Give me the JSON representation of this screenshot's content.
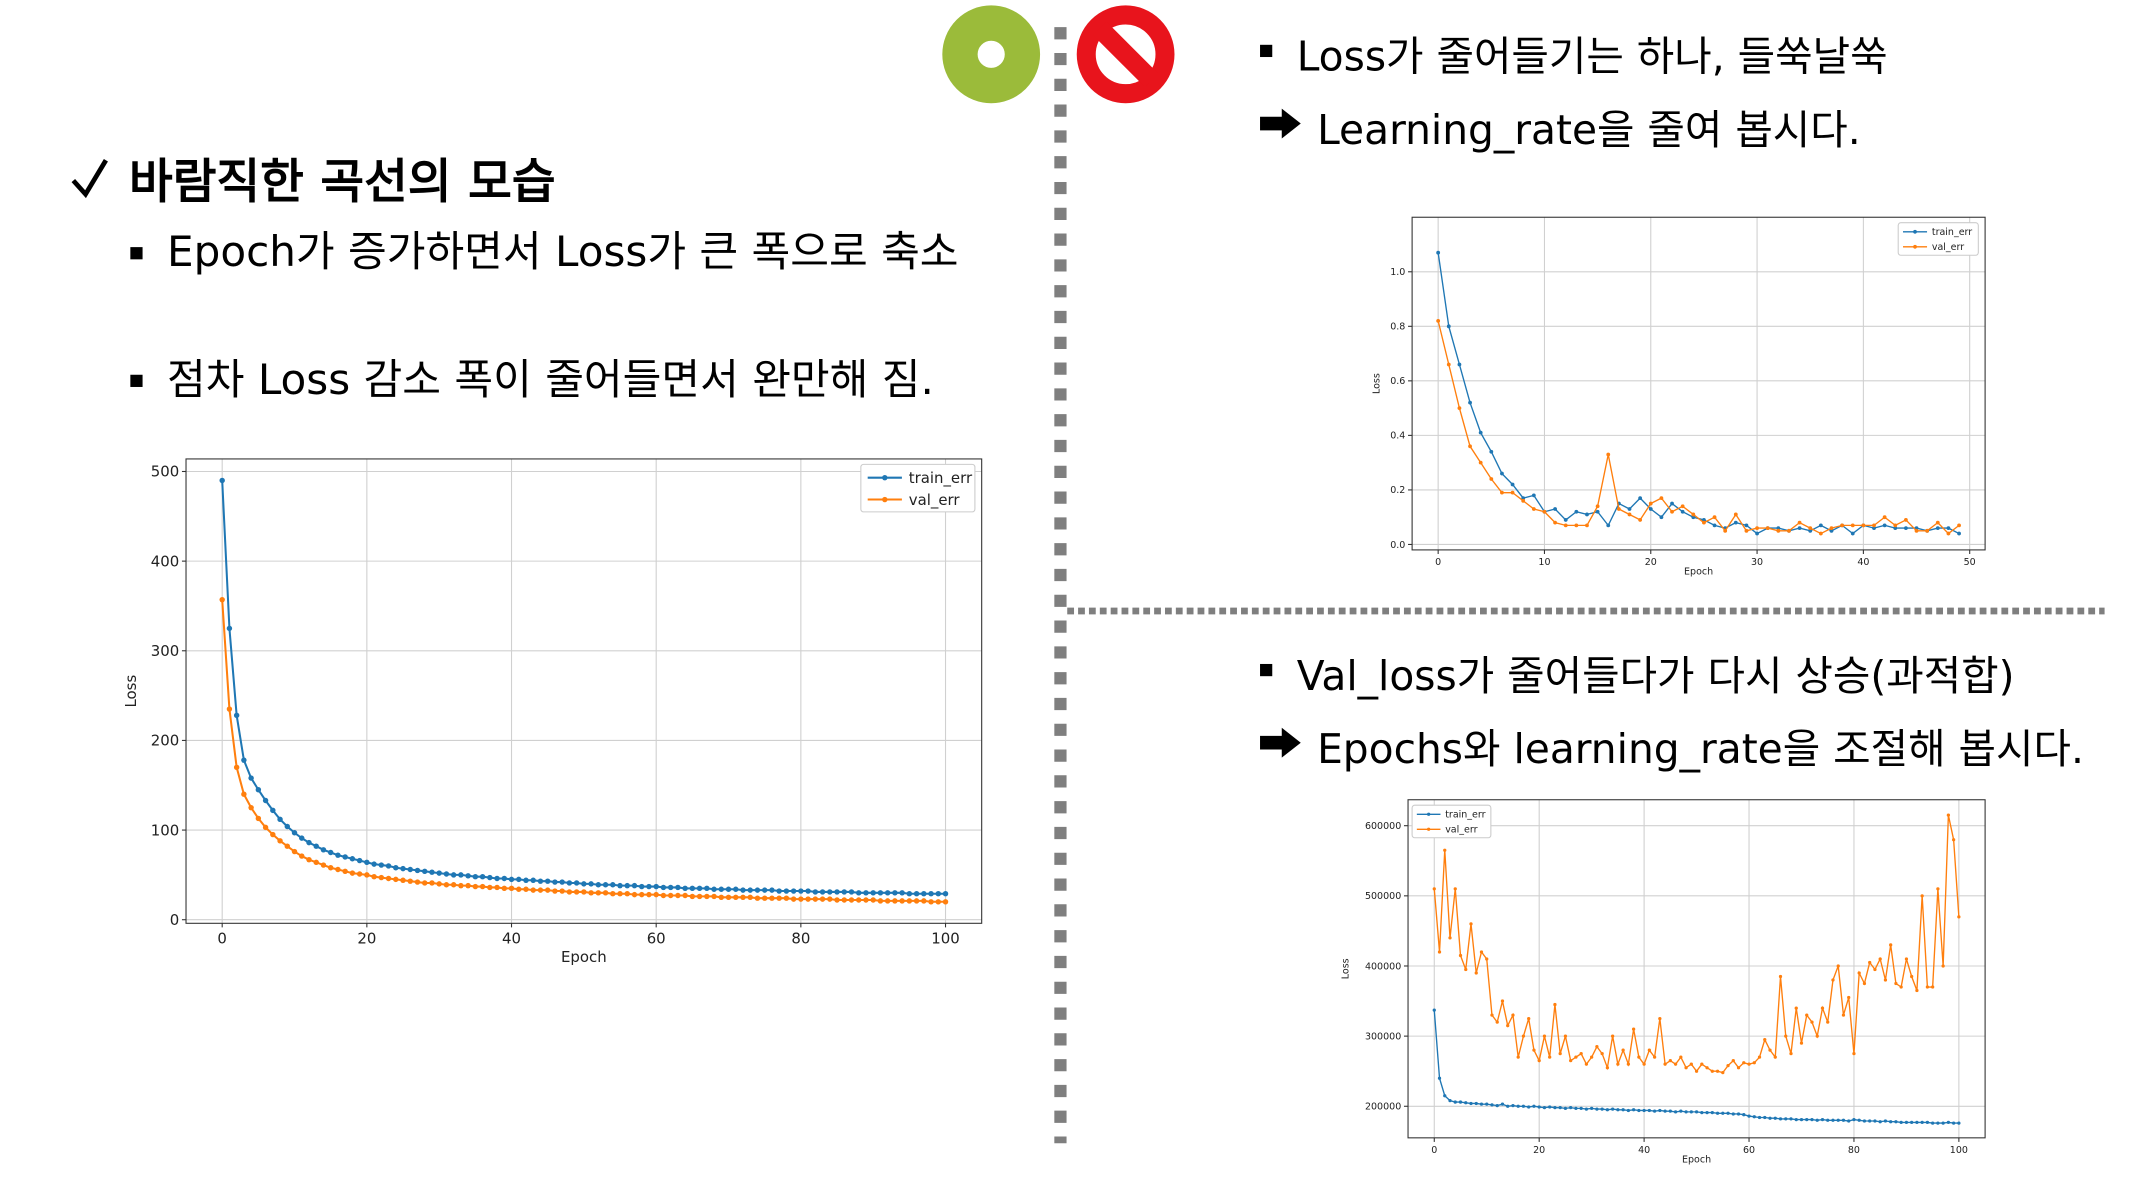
{
  "left": {
    "heading": "바람직한 곡선의 모습",
    "bullets": [
      "Epoch가 증가하면서 Loss가 큰 폭으로 축소",
      "점차 Loss 감소 폭이 줄어들면서 완만해 짐."
    ]
  },
  "top_right": {
    "bullet": "Loss가 줄어들기는 하나, 들쑥날쑥",
    "advice": "Learning_rate을 줄여 봅시다."
  },
  "bottom_right": {
    "bullet": "Val_loss가 줄어들다가 다시 상승(과적합)",
    "advice": "Epochs와 learning_rate을 조절해 봅시다."
  },
  "chart_data": [
    {
      "type": "line",
      "xlabel": "Epoch",
      "ylabel": "Loss",
      "grid": true,
      "legend": "upper right",
      "x": [
        0,
        1,
        2,
        3,
        4,
        5,
        6,
        7,
        8,
        9,
        10,
        11,
        12,
        13,
        14,
        15,
        16,
        17,
        18,
        19,
        20,
        21,
        22,
        23,
        24,
        25,
        26,
        27,
        28,
        29,
        30,
        31,
        32,
        33,
        34,
        35,
        36,
        37,
        38,
        39,
        40,
        41,
        42,
        43,
        44,
        45,
        46,
        47,
        48,
        49,
        50,
        51,
        52,
        53,
        54,
        55,
        56,
        57,
        58,
        59,
        60,
        61,
        62,
        63,
        64,
        65,
        66,
        67,
        68,
        69,
        70,
        71,
        72,
        73,
        74,
        75,
        76,
        77,
        78,
        79,
        80,
        81,
        82,
        83,
        84,
        85,
        86,
        87,
        88,
        89,
        90,
        91,
        92,
        93,
        94,
        95,
        96,
        97,
        98,
        99,
        100
      ],
      "series": [
        {
          "name": "train_err",
          "color": "#1f77b4",
          "values": [
            490,
            325,
            228,
            178,
            158,
            145,
            133,
            122,
            112,
            104,
            97,
            91,
            86,
            82,
            78,
            75,
            72,
            70,
            68,
            66,
            64,
            62,
            61,
            60,
            58,
            57,
            56,
            55,
            54,
            53,
            52,
            51,
            50,
            50,
            49,
            48,
            48,
            47,
            46,
            46,
            45,
            45,
            44,
            44,
            43,
            43,
            42,
            42,
            41,
            41,
            40,
            40,
            39,
            39,
            39,
            38,
            38,
            38,
            37,
            37,
            37,
            36,
            36,
            36,
            35,
            35,
            35,
            35,
            34,
            34,
            34,
            34,
            33,
            33,
            33,
            33,
            33,
            32,
            32,
            32,
            32,
            32,
            31,
            31,
            31,
            31,
            31,
            31,
            30,
            30,
            30,
            30,
            30,
            30,
            30,
            29,
            29,
            29,
            29,
            29,
            29
          ]
        },
        {
          "name": "val_err",
          "color": "#ff7f0e",
          "values": [
            357,
            235,
            170,
            140,
            125,
            113,
            103,
            95,
            88,
            82,
            76,
            71,
            67,
            64,
            61,
            58,
            56,
            54,
            52,
            51,
            50,
            48,
            47,
            46,
            45,
            44,
            43,
            42,
            41,
            41,
            40,
            39,
            39,
            38,
            38,
            37,
            37,
            36,
            36,
            35,
            35,
            34,
            34,
            33,
            33,
            33,
            32,
            32,
            31,
            31,
            31,
            30,
            30,
            30,
            29,
            29,
            29,
            28,
            28,
            28,
            28,
            27,
            27,
            27,
            27,
            26,
            26,
            26,
            26,
            25,
            25,
            25,
            25,
            25,
            24,
            24,
            24,
            24,
            24,
            23,
            23,
            23,
            23,
            23,
            23,
            22,
            22,
            22,
            22,
            22,
            22,
            21,
            21,
            21,
            21,
            21,
            21,
            21,
            20,
            20,
            20
          ]
        }
      ],
      "xlim": [
        -5,
        105
      ],
      "xticks": [
        0,
        20,
        40,
        60,
        80,
        100
      ],
      "ylim": [
        -4,
        514
      ],
      "yticks": [
        0,
        100,
        200,
        300,
        400,
        500
      ]
    },
    {
      "type": "line",
      "xlabel": "Epoch",
      "ylabel": "Loss",
      "grid": true,
      "legend": "upper right",
      "x": [
        0,
        1,
        2,
        3,
        4,
        5,
        6,
        7,
        8,
        9,
        10,
        11,
        12,
        13,
        14,
        15,
        16,
        17,
        18,
        19,
        20,
        21,
        22,
        23,
        24,
        25,
        26,
        27,
        28,
        29,
        30,
        31,
        32,
        33,
        34,
        35,
        36,
        37,
        38,
        39,
        40,
        41,
        42,
        43,
        44,
        45,
        46,
        47,
        48,
        49
      ],
      "series": [
        {
          "name": "train_err",
          "color": "#1f77b4",
          "values": [
            1.07,
            0.8,
            0.66,
            0.52,
            0.41,
            0.34,
            0.26,
            0.22,
            0.17,
            0.18,
            0.12,
            0.13,
            0.09,
            0.12,
            0.11,
            0.12,
            0.07,
            0.15,
            0.13,
            0.17,
            0.13,
            0.1,
            0.15,
            0.12,
            0.1,
            0.09,
            0.07,
            0.06,
            0.08,
            0.07,
            0.04,
            0.06,
            0.06,
            0.05,
            0.06,
            0.05,
            0.07,
            0.05,
            0.07,
            0.04,
            0.07,
            0.06,
            0.07,
            0.06,
            0.06,
            0.06,
            0.05,
            0.06,
            0.06,
            0.04
          ]
        },
        {
          "name": "val_err",
          "color": "#ff7f0e",
          "values": [
            0.82,
            0.66,
            0.5,
            0.36,
            0.3,
            0.24,
            0.19,
            0.19,
            0.16,
            0.13,
            0.12,
            0.08,
            0.07,
            0.07,
            0.07,
            0.14,
            0.33,
            0.13,
            0.11,
            0.09,
            0.15,
            0.17,
            0.12,
            0.14,
            0.11,
            0.08,
            0.1,
            0.05,
            0.11,
            0.05,
            0.06,
            0.06,
            0.05,
            0.05,
            0.08,
            0.06,
            0.04,
            0.06,
            0.07,
            0.07,
            0.07,
            0.07,
            0.1,
            0.07,
            0.09,
            0.05,
            0.05,
            0.08,
            0.04,
            0.07
          ]
        }
      ],
      "xlim": [
        -2.45,
        51.45
      ],
      "xticks": [
        0,
        10,
        20,
        30,
        40,
        50
      ],
      "ylim": [
        -0.02,
        1.2
      ],
      "yticks": [
        {
          "value": 0,
          "label": "0.0"
        },
        0.2,
        0.4,
        0.6,
        0.8,
        {
          "value": 1,
          "label": "1.0"
        }
      ]
    },
    {
      "type": "line",
      "xlabel": "Epoch",
      "ylabel": "Loss",
      "grid": true,
      "legend": "upper left",
      "x": [
        0,
        1,
        2,
        3,
        4,
        5,
        6,
        7,
        8,
        9,
        10,
        11,
        12,
        13,
        14,
        15,
        16,
        17,
        18,
        19,
        20,
        21,
        22,
        23,
        24,
        25,
        26,
        27,
        28,
        29,
        30,
        31,
        32,
        33,
        34,
        35,
        36,
        37,
        38,
        39,
        40,
        41,
        42,
        43,
        44,
        45,
        46,
        47,
        48,
        49,
        50,
        51,
        52,
        53,
        54,
        55,
        56,
        57,
        58,
        59,
        60,
        61,
        62,
        63,
        64,
        65,
        66,
        67,
        68,
        69,
        70,
        71,
        72,
        73,
        74,
        75,
        76,
        77,
        78,
        79,
        80,
        81,
        82,
        83,
        84,
        85,
        86,
        87,
        88,
        89,
        90,
        91,
        92,
        93,
        94,
        95,
        96,
        97,
        98,
        99,
        100
      ],
      "series": [
        {
          "name": "train_err",
          "color": "#1f77b4",
          "values": [
            337000,
            240000,
            215000,
            208000,
            206000,
            206000,
            205000,
            204000,
            204000,
            203000,
            203000,
            202000,
            201000,
            203000,
            200000,
            201000,
            200000,
            200000,
            199000,
            200000,
            199000,
            198000,
            199000,
            198000,
            198000,
            197000,
            198000,
            197000,
            197000,
            196000,
            197000,
            196000,
            196000,
            195000,
            196000,
            195000,
            195000,
            194000,
            195000,
            194000,
            194000,
            194000,
            193000,
            194000,
            193000,
            193000,
            192000,
            193000,
            192000,
            192000,
            192000,
            191000,
            191000,
            191000,
            190000,
            190000,
            190000,
            189000,
            189000,
            188000,
            186000,
            185000,
            184000,
            184000,
            183000,
            183000,
            182000,
            182000,
            182000,
            181000,
            181000,
            181000,
            181000,
            180000,
            181000,
            180000,
            180000,
            180000,
            180000,
            179000,
            181000,
            180000,
            179000,
            179000,
            179000,
            178000,
            179000,
            178000,
            178000,
            177000,
            177000,
            177000,
            177000,
            177000,
            177000,
            176000,
            176000,
            176000,
            177000,
            176000,
            176000
          ]
        },
        {
          "name": "val_err",
          "color": "#ff7f0e",
          "values": [
            510000,
            420000,
            565000,
            440000,
            510000,
            415000,
            395000,
            460000,
            390000,
            420000,
            410000,
            330000,
            320000,
            350000,
            315000,
            330000,
            270000,
            300000,
            325000,
            280000,
            265000,
            300000,
            270000,
            345000,
            275000,
            300000,
            265000,
            270000,
            275000,
            260000,
            270000,
            285000,
            275000,
            255000,
            300000,
            260000,
            280000,
            260000,
            310000,
            270000,
            260000,
            280000,
            270000,
            325000,
            260000,
            265000,
            260000,
            270000,
            255000,
            260000,
            250000,
            260000,
            255000,
            250000,
            250000,
            248000,
            258000,
            265000,
            255000,
            262000,
            260000,
            262000,
            270000,
            295000,
            280000,
            270000,
            385000,
            300000,
            275000,
            340000,
            290000,
            330000,
            320000,
            300000,
            340000,
            320000,
            380000,
            400000,
            330000,
            355000,
            275000,
            390000,
            375000,
            405000,
            395000,
            410000,
            380000,
            430000,
            375000,
            370000,
            410000,
            385000,
            365000,
            500000,
            370000,
            370000,
            510000,
            400000,
            615000,
            580000,
            470000
          ]
        }
      ],
      "xlim": [
        -5,
        105
      ],
      "xticks": [
        0,
        20,
        40,
        60,
        80,
        100
      ],
      "ylim": [
        155000,
        637000
      ],
      "yticks": [
        200000,
        300000,
        400000,
        500000,
        600000
      ]
    }
  ]
}
